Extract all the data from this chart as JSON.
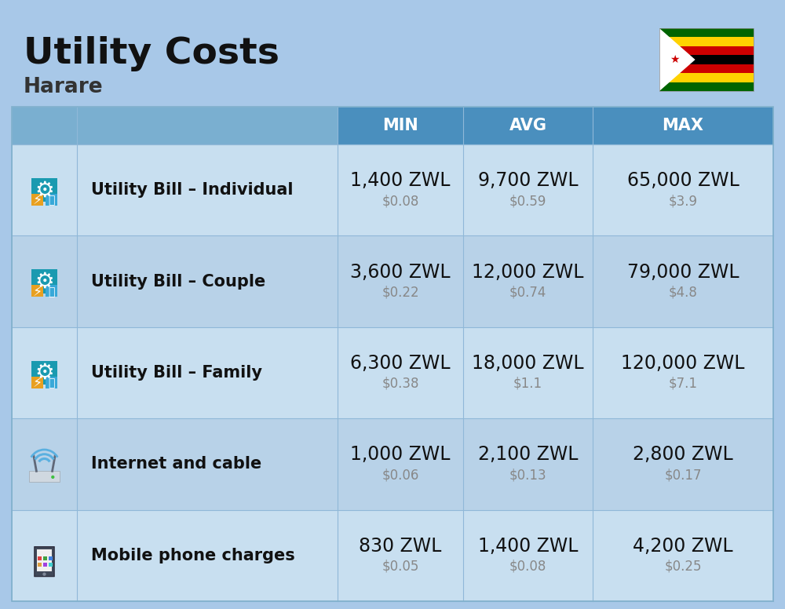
{
  "title": "Utility Costs",
  "subtitle": "Harare",
  "background_color": "#a8c8e8",
  "header_color": "#4a8fbe",
  "header_text_color": "#ffffff",
  "row_bg_color_light": "#c8dff0",
  "row_bg_color_dark": "#b8d2e8",
  "divider_color": "#90b8d8",
  "columns": [
    "MIN",
    "AVG",
    "MAX"
  ],
  "rows": [
    {
      "label": "Utility Bill – Individual",
      "min_zwl": "1,400 ZWL",
      "min_usd": "$0.08",
      "avg_zwl": "9,700 ZWL",
      "avg_usd": "$0.59",
      "max_zwl": "65,000 ZWL",
      "max_usd": "$3.9",
      "icon": "utility"
    },
    {
      "label": "Utility Bill – Couple",
      "min_zwl": "3,600 ZWL",
      "min_usd": "$0.22",
      "avg_zwl": "12,000 ZWL",
      "avg_usd": "$0.74",
      "max_zwl": "79,000 ZWL",
      "max_usd": "$4.8",
      "icon": "utility"
    },
    {
      "label": "Utility Bill – Family",
      "min_zwl": "6,300 ZWL",
      "min_usd": "$0.38",
      "avg_zwl": "18,000 ZWL",
      "avg_usd": "$1.1",
      "max_zwl": "120,000 ZWL",
      "max_usd": "$7.1",
      "icon": "utility"
    },
    {
      "label": "Internet and cable",
      "min_zwl": "1,000 ZWL",
      "min_usd": "$0.06",
      "avg_zwl": "2,100 ZWL",
      "avg_usd": "$0.13",
      "max_zwl": "2,800 ZWL",
      "max_usd": "$0.17",
      "icon": "internet"
    },
    {
      "label": "Mobile phone charges",
      "min_zwl": "830 ZWL",
      "min_usd": "$0.05",
      "avg_zwl": "1,400 ZWL",
      "avg_usd": "$0.08",
      "max_zwl": "4,200 ZWL",
      "max_usd": "$0.25",
      "icon": "mobile"
    }
  ],
  "title_fontsize": 34,
  "subtitle_fontsize": 19,
  "header_fontsize": 15,
  "label_fontsize": 15,
  "value_fontsize": 17,
  "usd_fontsize": 12
}
